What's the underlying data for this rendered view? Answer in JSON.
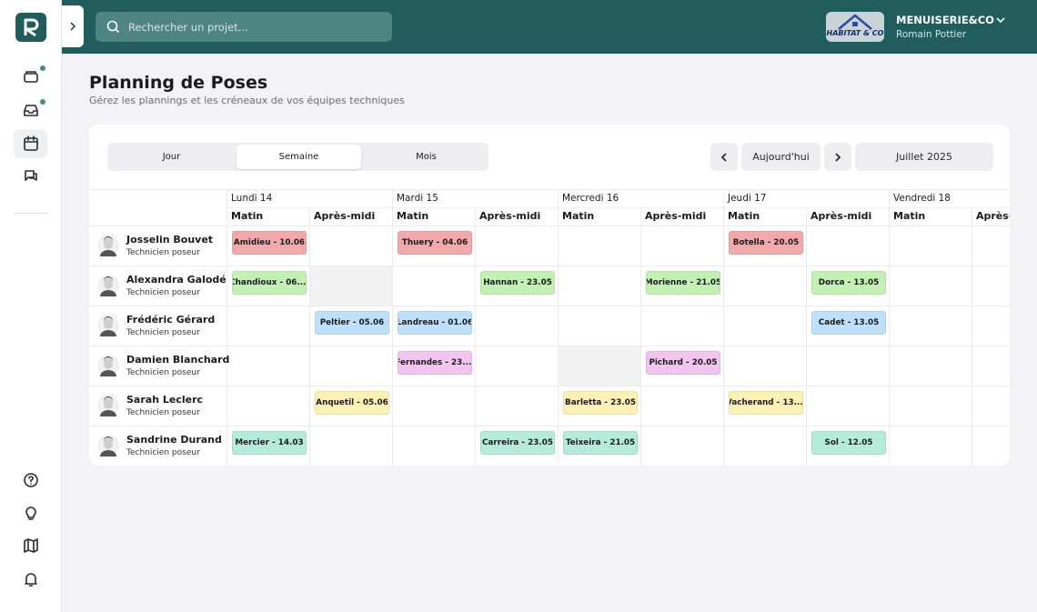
{
  "search": {
    "placeholder": "Rechercher un projet..."
  },
  "account": {
    "logo_text": "HABITAT & CO",
    "company": "MENUISERIE&CO",
    "user": "Romain Pottier"
  },
  "header": {
    "title": "Planning de Poses",
    "subtitle": "Gérez les plannings et les créneaux de vos équipes techniques"
  },
  "tabs": {
    "items": [
      "Jour",
      "Semaine",
      "Mois"
    ],
    "active": 1
  },
  "nav": {
    "today": "Aujourd'hui",
    "period": "Juillet 2025"
  },
  "schedule": {
    "days": [
      "Lundi 14",
      "Mardi 15",
      "Mercredi 16",
      "Jeudi 17",
      "Vendredi 18"
    ],
    "slots": [
      "Matin",
      "Après-midi"
    ],
    "rows": [
      {
        "name": "Josselin Bouvet",
        "role": "Technicien poseur",
        "color": "#f3a9aa",
        "blocked": [],
        "cells": [
          "Amidieu - 10.06",
          null,
          "Thuery - 04.06",
          null,
          null,
          null,
          "Botella - 20.05",
          null,
          null,
          null
        ]
      },
      {
        "name": "Alexandra Galodé",
        "role": "Technicien poseur",
        "color": "#c3f0b3",
        "blocked": [
          1
        ],
        "cells": [
          "Chandioux - 06....",
          null,
          null,
          "Hannan - 23.05",
          null,
          "Morienne - 21.05",
          null,
          "Dorca - 13.05",
          null,
          null
        ]
      },
      {
        "name": "Frédéric Gérard",
        "role": "Technicien poseur",
        "color": "#bfe0fb",
        "blocked": [],
        "cells": [
          null,
          "Peltier - 05.06",
          "Landreau - 01.06",
          null,
          null,
          null,
          null,
          "Cadet - 13.05",
          null,
          null
        ]
      },
      {
        "name": "Damien Blanchard",
        "role": "Technicien poseur",
        "color": "#f3c4ef",
        "blocked": [
          4
        ],
        "cells": [
          null,
          null,
          "Fernandes - 23....",
          null,
          null,
          "Pichard - 20.05",
          null,
          null,
          null,
          null
        ]
      },
      {
        "name": "Sarah Leclerc",
        "role": "Technicien poseur",
        "color": "#fbf1b5",
        "blocked": [],
        "cells": [
          null,
          "Anquetil - 05.06",
          null,
          null,
          "Barletta - 23.05",
          null,
          "Vacherand - 13....",
          null,
          null,
          null
        ]
      },
      {
        "name": "Sandrine Durand",
        "role": "Technicien poseur",
        "color": "#b5ecd9",
        "blocked": [],
        "cells": [
          "Mercier - 14.03",
          null,
          null,
          "Carreira - 23.05",
          "Teixeira - 21.05",
          null,
          null,
          "Sol - 12.05",
          null,
          null
        ]
      }
    ]
  }
}
